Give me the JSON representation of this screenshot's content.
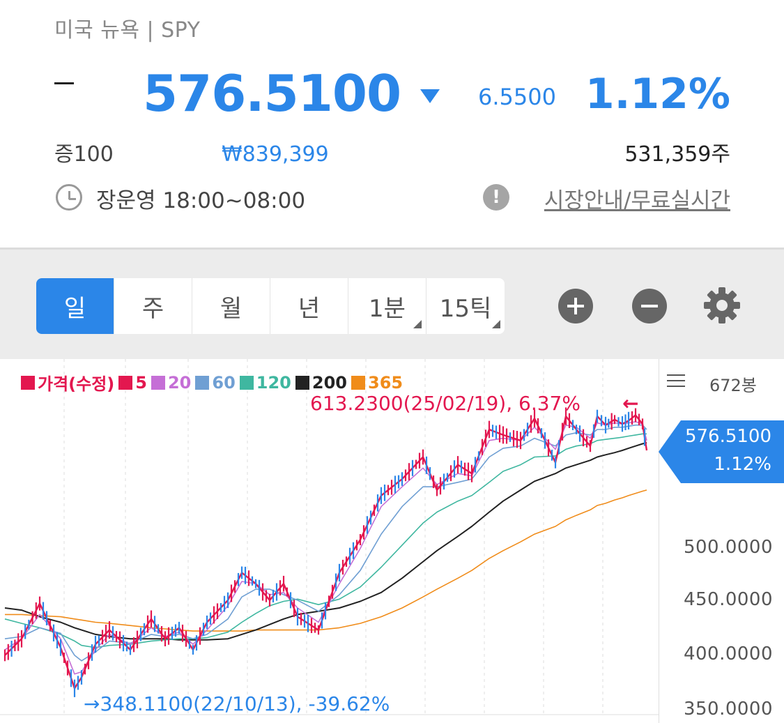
{
  "header": {
    "market": "미국 뉴욕 | SPY",
    "price": "576.5100",
    "change": "6.5500",
    "change_pct": "1.12%",
    "margin_rate": "증100",
    "krw_price": "₩839,399",
    "volume": "531,359주",
    "hours": "장운영 18:00~08:00",
    "guide_link": "시장안내/무료실시간",
    "direction": "down",
    "accent_color": "#2b86e8"
  },
  "toolbar": {
    "tabs": [
      {
        "label": "일",
        "active": true
      },
      {
        "label": "주",
        "active": false
      },
      {
        "label": "월",
        "active": false
      },
      {
        "label": "년",
        "active": false
      },
      {
        "label": "1분",
        "active": false
      },
      {
        "label": "15틱",
        "active": false
      }
    ],
    "icons": [
      "zoom-in-icon",
      "zoom-out-icon",
      "gear-icon"
    ]
  },
  "chart": {
    "legend": [
      {
        "label": "가격(수정)",
        "color": "#e3174f"
      },
      {
        "label": "5",
        "color": "#e3174f"
      },
      {
        "label": "20",
        "color": "#c56fd6"
      },
      {
        "label": "60",
        "color": "#6f9fd3"
      },
      {
        "label": "120",
        "color": "#3fb7a0"
      },
      {
        "label": "200",
        "color": "#222222"
      },
      {
        "label": "365",
        "color": "#f08c1a"
      }
    ],
    "bar_count": "672봉",
    "high_note": "613.2300(25/02/19), 6.37%",
    "high_arrow": "←",
    "low_note": "→348.1100(22/10/13), -39.62%",
    "current_price": "576.5100",
    "current_pct": "1.12%"
  },
  "chart_data": {
    "type": "line",
    "ylim": [
      345,
      625
    ],
    "y_ticks": [
      "500.0000",
      "450.0000",
      "400.0000",
      "350.0000"
    ],
    "y_tick_values": [
      500,
      450,
      400,
      350
    ],
    "x": [
      0,
      24,
      50,
      80,
      100,
      110,
      130,
      150,
      180,
      210,
      230,
      250,
      270,
      290,
      320,
      340,
      360,
      380,
      400,
      420,
      450,
      480,
      510,
      540,
      570,
      600,
      620,
      650,
      670,
      695,
      715,
      740,
      760,
      790,
      805,
      820,
      840,
      850,
      862,
      875,
      886,
      895,
      905,
      915,
      921
    ],
    "series": [
      {
        "name": "가격(수정)",
        "values": [
          395,
          410,
          442,
          402,
          365,
          375,
          405,
          418,
          400,
          428,
          410,
          420,
          400,
          425,
          445,
          470,
          460,
          445,
          460,
          430,
          418,
          470,
          500,
          540,
          555,
          575,
          545,
          568,
          560,
          600,
          595,
          590,
          610,
          570,
          612,
          600,
          585,
          612,
          604,
          609,
          605,
          608,
          613,
          605,
          581
        ]
      },
      {
        "name": "20",
        "values": [
          400,
          410,
          432,
          410,
          378,
          380,
          400,
          414,
          405,
          420,
          412,
          416,
          405,
          418,
          440,
          462,
          460,
          450,
          452,
          438,
          425,
          460,
          492,
          530,
          548,
          565,
          550,
          560,
          558,
          590,
          592,
          590,
          602,
          582,
          604,
          602,
          592,
          606,
          604,
          606,
          605,
          606,
          607,
          605,
          590
        ]
      },
      {
        "name": "60",
        "values": [
          410,
          412,
          420,
          415,
          395,
          390,
          398,
          408,
          406,
          414,
          412,
          414,
          410,
          414,
          428,
          448,
          455,
          455,
          450,
          445,
          435,
          450,
          472,
          505,
          530,
          548,
          548,
          552,
          555,
          575,
          583,
          585,
          592,
          585,
          595,
          597,
          595,
          600,
          600,
          602,
          602,
          603,
          604,
          604,
          600
        ]
      },
      {
        "name": "120",
        "values": [
          428,
          424,
          420,
          414,
          408,
          404,
          402,
          404,
          405,
          408,
          409,
          410,
          410,
          411,
          416,
          425,
          433,
          440,
          444,
          446,
          441,
          446,
          457,
          475,
          495,
          515,
          525,
          535,
          540,
          552,
          562,
          568,
          575,
          576,
          582,
          585,
          587,
          590,
          591,
          592,
          593,
          594,
          595,
          596,
          596
        ]
      },
      {
        "name": "200",
        "values": [
          438,
          436,
          430,
          425,
          420,
          418,
          414,
          412,
          410,
          410,
          410,
          409,
          409,
          409,
          410,
          414,
          418,
          423,
          428,
          432,
          435,
          438,
          444,
          452,
          465,
          480,
          490,
          503,
          512,
          525,
          535,
          545,
          553,
          560,
          565,
          568,
          572,
          575,
          577,
          579,
          581,
          583,
          585,
          587,
          588
        ]
      },
      {
        "name": "365",
        "values": [
          432,
          432,
          431,
          430,
          428,
          427,
          425,
          424,
          422,
          420,
          419,
          418,
          417,
          417,
          417,
          417,
          418,
          418,
          418,
          418,
          418,
          420,
          424,
          430,
          438,
          448,
          455,
          465,
          472,
          483,
          490,
          498,
          505,
          512,
          518,
          522,
          527,
          531,
          533,
          536,
          538,
          540,
          542,
          544,
          545
        ]
      }
    ]
  }
}
